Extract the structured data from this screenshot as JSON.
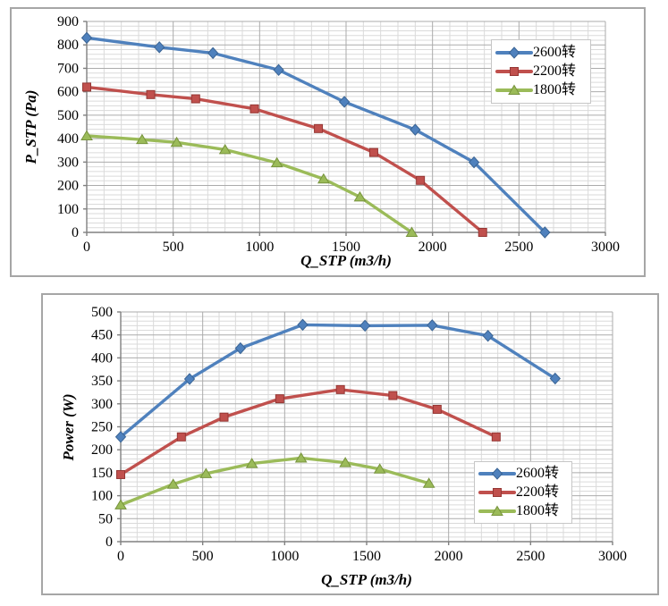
{
  "page": {
    "background": "#ffffff",
    "frame_border_color": "#a6a6a6",
    "gridline_minor_color": "#dadada",
    "gridline_major_color": "#ababab",
    "axis_color": "#808080"
  },
  "chart_data": [
    {
      "type": "line",
      "title": "",
      "xlabel": "Q_STP (m3/h)",
      "ylabel": "P_STP (Pa)",
      "grid": true,
      "legend_position": "inside-top-right",
      "x_axis": {
        "min": 0,
        "max": 3000,
        "major_step": 500,
        "minor_step": 100,
        "tick_labels": [
          "0",
          "500",
          "1000",
          "1500",
          "2000",
          "2500",
          "3000"
        ]
      },
      "y_axis": {
        "min": 0,
        "max": 900,
        "major_step": 100,
        "minor_step": 20,
        "tick_labels": [
          "0",
          "100",
          "200",
          "300",
          "400",
          "500",
          "600",
          "700",
          "800",
          "900"
        ]
      },
      "series": [
        {
          "name": "2600转",
          "color": "#4f81bd",
          "edge_color": "#3a6494",
          "marker": "diamond",
          "x": [
            0,
            420,
            730,
            1110,
            1490,
            1900,
            2240,
            2650
          ],
          "y": [
            830,
            790,
            765,
            693,
            557,
            438,
            299,
            0
          ]
        },
        {
          "name": "2200转",
          "color": "#c0504d",
          "edge_color": "#953734",
          "marker": "square",
          "x": [
            0,
            370,
            630,
            970,
            1340,
            1660,
            1930,
            2290
          ],
          "y": [
            620,
            588,
            570,
            527,
            443,
            341,
            222,
            0
          ]
        },
        {
          "name": "1800转",
          "color": "#9bbb59",
          "edge_color": "#77933c",
          "marker": "triangle",
          "x": [
            0,
            320,
            520,
            800,
            1100,
            1370,
            1580,
            1880
          ],
          "y": [
            412,
            396,
            384,
            353,
            297,
            228,
            151,
            0
          ]
        }
      ]
    },
    {
      "type": "line",
      "title": "",
      "xlabel": "Q_STP (m3/h)",
      "ylabel": "Power (W)",
      "grid": true,
      "legend_position": "inside-bottom-right",
      "x_axis": {
        "min": 0,
        "max": 3000,
        "major_step": 500,
        "minor_step": 100,
        "tick_labels": [
          "0",
          "500",
          "1000",
          "1500",
          "2000",
          "2500",
          "3000"
        ]
      },
      "y_axis": {
        "min": 0,
        "max": 500,
        "major_step": 50,
        "minor_step": 10,
        "tick_labels": [
          "0",
          "50",
          "100",
          "150",
          "200",
          "250",
          "300",
          "350",
          "400",
          "450",
          "500"
        ]
      },
      "series": [
        {
          "name": "2600转",
          "color": "#4f81bd",
          "edge_color": "#3a6494",
          "marker": "diamond",
          "x": [
            0,
            420,
            730,
            1110,
            1490,
            1900,
            2240,
            2650
          ],
          "y": [
            228,
            354,
            421,
            472,
            470,
            471,
            448,
            355
          ]
        },
        {
          "name": "2200转",
          "color": "#c0504d",
          "edge_color": "#953734",
          "marker": "square",
          "x": [
            0,
            370,
            630,
            970,
            1340,
            1660,
            1930,
            2290
          ],
          "y": [
            146,
            228,
            271,
            311,
            331,
            318,
            288,
            228
          ]
        },
        {
          "name": "1800转",
          "color": "#9bbb59",
          "edge_color": "#77933c",
          "marker": "triangle",
          "x": [
            0,
            320,
            520,
            800,
            1100,
            1370,
            1580,
            1880
          ],
          "y": [
            80,
            125,
            148,
            170,
            182,
            172,
            158,
            127
          ]
        }
      ]
    }
  ]
}
